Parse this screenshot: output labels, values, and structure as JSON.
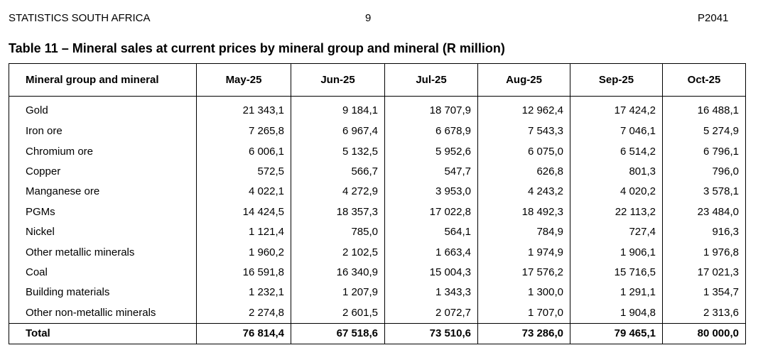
{
  "header": {
    "org": "STATISTICS SOUTH AFRICA",
    "page_number": "9",
    "publication_code": "P2041"
  },
  "title": "Table 11 – Mineral sales at current prices by mineral group and mineral (R million)",
  "table": {
    "columns": [
      "Mineral group and mineral",
      "May-25",
      "Jun-25",
      "Jul-25",
      "Aug-25",
      "Sep-25",
      "Oct-25"
    ],
    "rows": [
      {
        "name": "Gold",
        "values": [
          "21 343,1",
          "9 184,1",
          "18 707,9",
          "12 962,4",
          "17 424,2",
          "16 488,1"
        ]
      },
      {
        "name": "Iron ore",
        "values": [
          "7 265,8",
          "6 967,4",
          "6 678,9",
          "7 543,3",
          "7 046,1",
          "5 274,9"
        ]
      },
      {
        "name": "Chromium ore",
        "values": [
          "6 006,1",
          "5 132,5",
          "5 952,6",
          "6 075,0",
          "6 514,2",
          "6 796,1"
        ]
      },
      {
        "name": "Copper",
        "values": [
          "572,5",
          "566,7",
          "547,7",
          "626,8",
          "801,3",
          "796,0"
        ]
      },
      {
        "name": "Manganese ore",
        "values": [
          "4 022,1",
          "4 272,9",
          "3 953,0",
          "4 243,2",
          "4 020,2",
          "3 578,1"
        ]
      },
      {
        "name": "PGMs",
        "values": [
          "14 424,5",
          "18 357,3",
          "17 022,8",
          "18 492,3",
          "22 113,2",
          "23 484,0"
        ]
      },
      {
        "name": "Nickel",
        "values": [
          "1 121,4",
          "785,0",
          "564,1",
          "784,9",
          "727,4",
          "916,3"
        ]
      },
      {
        "name": "Other metallic minerals",
        "values": [
          "1 960,2",
          "2 102,5",
          "1 663,4",
          "1 974,9",
          "1 906,1",
          "1 976,8"
        ]
      },
      {
        "name": "Coal",
        "values": [
          "16 591,8",
          "16 340,9",
          "15 004,3",
          "17 576,2",
          "15 716,5",
          "17 021,3"
        ]
      },
      {
        "name": "Building materials",
        "values": [
          "1 232,1",
          "1 207,9",
          "1 343,3",
          "1 300,0",
          "1 291,1",
          "1 354,7"
        ]
      },
      {
        "name": "Other non-metallic minerals",
        "values": [
          "2 274,8",
          "2 601,5",
          "2 072,7",
          "1 707,0",
          "1 904,8",
          "2 313,6"
        ]
      }
    ],
    "total": {
      "name": "Total",
      "values": [
        "76 814,4",
        "67 518,6",
        "73 510,6",
        "73 286,0",
        "79 465,1",
        "80 000,0"
      ]
    }
  }
}
